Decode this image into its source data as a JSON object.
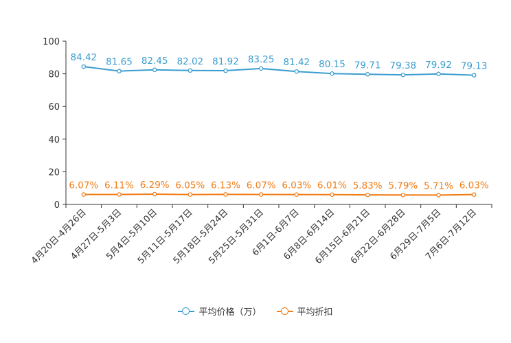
{
  "chart_data": {
    "type": "line",
    "title": "",
    "xlabel": "",
    "ylabel": "",
    "ylim": [
      0,
      100
    ],
    "yticks": [
      0,
      20,
      40,
      60,
      80,
      100
    ],
    "categories": [
      "4月20日-4月26日",
      "4月27日-5月3日",
      "5月4日-5月10日",
      "5月11日-5月17日",
      "5月18日-5月24日",
      "5月25日-5月31日",
      "6月1日-6月7日",
      "6月8日-6月14日",
      "6月15日-6月21日",
      "6月22日-6月28日",
      "6月29日-7月5日",
      "7月6日-7月12日"
    ],
    "series": [
      {
        "name": "平均价格（万）",
        "color": "#3a9dd0",
        "values": [
          84.42,
          81.65,
          82.45,
          82.02,
          81.92,
          83.25,
          81.42,
          80.15,
          79.71,
          79.38,
          79.92,
          79.13
        ],
        "labels": [
          "84.42",
          "81.65",
          "82.45",
          "82.02",
          "81.92",
          "83.25",
          "81.42",
          "80.15",
          "79.71",
          "79.38",
          "79.92",
          "79.13"
        ]
      },
      {
        "name": "平均折扣",
        "color": "#f07d17",
        "values": [
          6.07,
          6.11,
          6.29,
          6.05,
          6.13,
          6.07,
          6.03,
          6.01,
          5.83,
          5.79,
          5.71,
          6.03
        ],
        "labels": [
          "6.07%",
          "6.11%",
          "6.29%",
          "6.05%",
          "6.13%",
          "6.07%",
          "6.03%",
          "6.01%",
          "5.83%",
          "5.79%",
          "5.71%",
          "6.03%"
        ]
      }
    ],
    "legend_position": "bottom-center"
  }
}
